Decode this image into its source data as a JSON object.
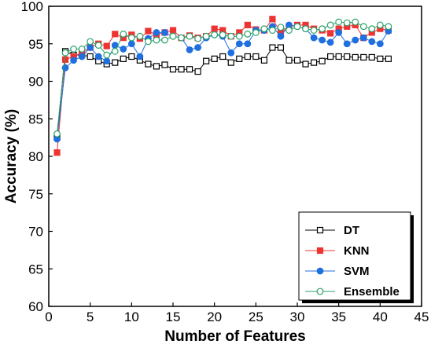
{
  "chart_data": {
    "type": "line",
    "title": "",
    "xlabel": "Number of Features",
    "ylabel": "Accuracy (%)",
    "xlim": [
      0,
      45
    ],
    "ylim": [
      60,
      100
    ],
    "xticks": [
      0,
      5,
      10,
      15,
      20,
      25,
      30,
      35,
      40,
      45
    ],
    "yticks": [
      60,
      65,
      70,
      75,
      80,
      85,
      90,
      95,
      100
    ],
    "grid": false,
    "legend_position": "bottom-right",
    "x": [
      1,
      2,
      3,
      4,
      5,
      6,
      7,
      8,
      9,
      10,
      11,
      12,
      13,
      14,
      15,
      16,
      17,
      18,
      19,
      20,
      21,
      22,
      23,
      24,
      25,
      26,
      27,
      28,
      29,
      30,
      31,
      32,
      33,
      34,
      35,
      36,
      37,
      38,
      39,
      40,
      41
    ],
    "series": [
      {
        "name": "DT",
        "color": "#000000",
        "marker": "square-open",
        "values": [
          82.5,
          94.0,
          93.5,
          93.5,
          93.3,
          92.7,
          92.3,
          92.5,
          93.0,
          93.3,
          92.8,
          92.3,
          92.0,
          92.2,
          91.6,
          91.6,
          91.6,
          91.3,
          92.7,
          93.0,
          93.3,
          92.5,
          93.0,
          93.3,
          93.3,
          92.8,
          94.5,
          94.5,
          92.8,
          92.8,
          92.3,
          92.5,
          92.7,
          93.3,
          93.3,
          93.3,
          93.2,
          93.2,
          93.2,
          93.0,
          93.0
        ]
      },
      {
        "name": "KNN",
        "color": "#ee3333",
        "marker": "square-filled",
        "values": [
          80.5,
          92.9,
          93.3,
          93.8,
          94.5,
          95.0,
          94.7,
          96.3,
          95.8,
          96.2,
          95.7,
          96.7,
          96.2,
          96.5,
          96.8,
          95.8,
          96.1,
          95.8,
          96.0,
          97.0,
          96.8,
          96.0,
          96.5,
          97.5,
          96.9,
          96.8,
          98.3,
          96.5,
          97.3,
          97.5,
          97.5,
          97.0,
          96.8,
          96.4,
          97.0,
          97.3,
          97.5,
          95.8,
          96.5,
          97.0,
          96.8
        ]
      },
      {
        "name": "SVM",
        "color": "#1f6fdf",
        "marker": "circle-filled",
        "values": [
          82.3,
          91.8,
          92.8,
          93.3,
          94.5,
          93.3,
          92.7,
          94.8,
          94.3,
          95.0,
          93.3,
          95.7,
          96.5,
          96.5,
          96.0,
          95.8,
          94.2,
          94.5,
          95.8,
          96.2,
          96.0,
          93.8,
          95.0,
          95.0,
          96.8,
          96.8,
          97.3,
          96.0,
          97.5,
          97.3,
          97.0,
          95.8,
          95.5,
          95.2,
          96.5,
          95.0,
          95.5,
          95.8,
          95.3,
          95.0,
          96.7
        ]
      },
      {
        "name": "Ensemble",
        "color": "#2aa36a",
        "marker": "circle-open",
        "values": [
          83.0,
          93.8,
          94.3,
          94.3,
          95.3,
          94.8,
          93.5,
          94.0,
          96.3,
          95.8,
          96.0,
          95.3,
          95.5,
          95.5,
          96.0,
          95.8,
          96.0,
          95.7,
          96.0,
          96.2,
          96.2,
          96.0,
          96.0,
          96.3,
          96.5,
          97.0,
          96.8,
          97.2,
          96.8,
          97.3,
          97.0,
          96.8,
          97.0,
          97.5,
          97.9,
          97.8,
          97.9,
          97.3,
          97.0,
          97.5,
          97.3
        ]
      }
    ]
  }
}
